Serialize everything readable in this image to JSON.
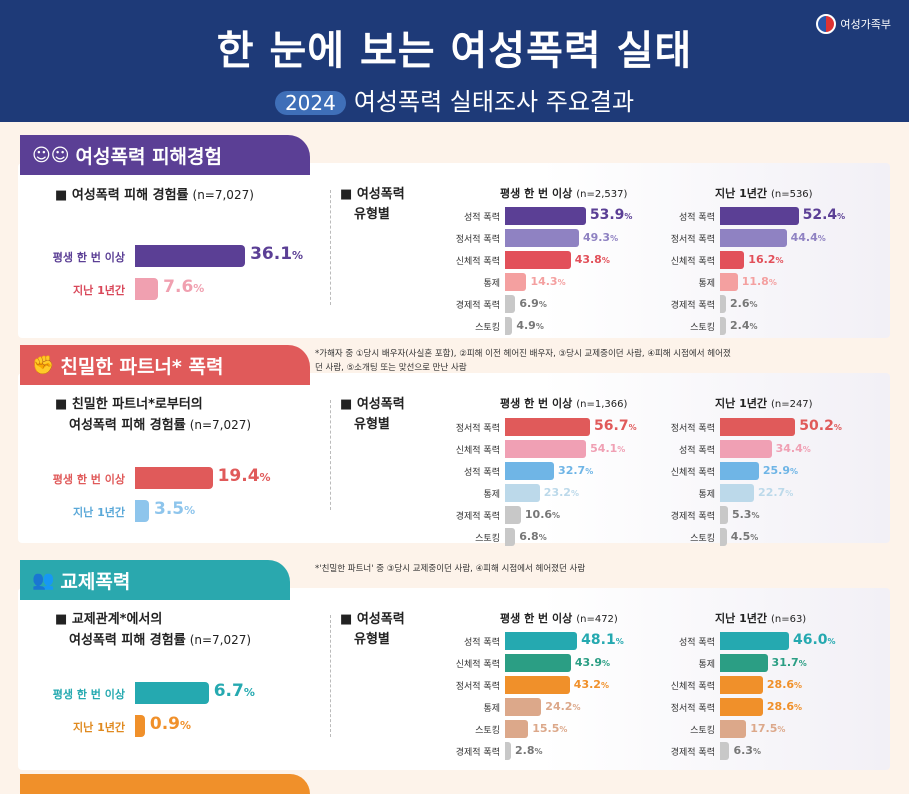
{
  "header": {
    "title": "한 눈에 보는 여성폭력 실태",
    "year": "2024",
    "subtitle": "여성폭력 실태조사 주요결과",
    "logo_text": "여성가족부"
  },
  "sections": [
    {
      "tab": "여성폭력 피해경험",
      "icon": "people-speech-icon",
      "color": "#5b3f95",
      "note": "",
      "left_title": "여성폭력 피해 경험률",
      "left_title2": "",
      "left_n": "(n=7,027)",
      "rate": [
        {
          "label": "평생 한 번 이상",
          "value": 36.1,
          "text": "36.1",
          "unit": "%",
          "color": "#5b3f95"
        },
        {
          "label": "지난 1년간",
          "value": 7.6,
          "text": "7.6",
          "unit": "%",
          "color": "#f0a0b0",
          "label_color": "#d9485a"
        }
      ],
      "type_title1": "여성폭력",
      "type_title2": "유형별",
      "charts": [
        {
          "title": "평생 한 번 이상",
          "n": "(n=2,537)",
          "categories": [
            "성적 폭력",
            "정서적 폭력",
            "신체적 폭력",
            "통제",
            "경제적 폭력",
            "스토킹"
          ],
          "values": [
            53.9,
            49.3,
            43.8,
            14.3,
            6.9,
            4.9
          ],
          "colors": [
            "#5b3f95",
            "#8f82c2",
            "#e2505a",
            "#f4a0a0",
            "#c8c8c8",
            "#c8c8c8"
          ]
        },
        {
          "title": "지난 1년간",
          "n": "(n=536)",
          "categories": [
            "성적 폭력",
            "정서적 폭력",
            "신체적 폭력",
            "통제",
            "경제적 폭력",
            "스토킹"
          ],
          "values": [
            52.4,
            44.4,
            16.2,
            11.8,
            2.6,
            2.4
          ],
          "colors": [
            "#5b3f95",
            "#8f82c2",
            "#e2505a",
            "#f4a0a0",
            "#c8c8c8",
            "#c8c8c8"
          ]
        }
      ]
    },
    {
      "tab": "친밀한 파트너* 폭력",
      "icon": "fist-icon",
      "color": "#e05a5a",
      "note": "*가해자 중 ①당시 배우자(사실혼 포함), ②피해 이전 헤어진 배우자, ③당시 교제중이던 사람, ④피해 시점에서 헤어졌던 사람, ⑤소개팅 또는 맞선으로 만난 사람",
      "left_title": "친밀한 파트너*로부터의",
      "left_title2": "여성폭력 피해 경험률",
      "left_n": "(n=7,027)",
      "rate": [
        {
          "label": "평생 한 번 이상",
          "value": 19.4,
          "text": "19.4",
          "unit": "%",
          "color": "#e05a5a"
        },
        {
          "label": "지난 1년간",
          "value": 3.5,
          "text": "3.5",
          "unit": "%",
          "color": "#8ec5ec",
          "label_color": "#5aa8d8"
        }
      ],
      "type_title1": "여성폭력",
      "type_title2": "유형별",
      "charts": [
        {
          "title": "평생 한 번 이상",
          "n": "(n=1,366)",
          "categories": [
            "정서적 폭력",
            "신체적 폭력",
            "성적 폭력",
            "통제",
            "경제적 폭력",
            "스토킹"
          ],
          "values": [
            56.7,
            54.1,
            32.7,
            23.2,
            10.6,
            6.8
          ],
          "colors": [
            "#e05a5a",
            "#f0a0b4",
            "#6fb5e6",
            "#bcd9ea",
            "#c8c8c8",
            "#c8c8c8"
          ]
        },
        {
          "title": "지난 1년간",
          "n": "(n=247)",
          "categories": [
            "정서적 폭력",
            "성적 폭력",
            "신체적 폭력",
            "통제",
            "경제적 폭력",
            "스토킹"
          ],
          "values": [
            50.2,
            34.4,
            25.9,
            22.7,
            5.3,
            4.5
          ],
          "colors": [
            "#e05a5a",
            "#f0a0b4",
            "#6fb5e6",
            "#bcd9ea",
            "#c8c8c8",
            "#c8c8c8"
          ]
        }
      ]
    },
    {
      "tab": "교제폭력",
      "icon": "couple-icon",
      "color": "#2aa8ae",
      "note": "*'친밀한 파트너' 중 ③당시 교제중이던 사람, ④피해 시점에서 헤어졌던 사람",
      "left_title": "교제관계*에서의",
      "left_title2": "여성폭력 피해 경험률",
      "left_n": "(n=7,027)",
      "rate": [
        {
          "label": "평생 한 번 이상",
          "value": 6.7,
          "text": "6.7",
          "unit": "%",
          "color": "#25a9b0"
        },
        {
          "label": "지난 1년간",
          "value": 0.9,
          "text": "0.9",
          "unit": "%",
          "color": "#f0902a",
          "label_color": "#e08a20"
        }
      ],
      "type_title1": "여성폭력",
      "type_title2": "유형별",
      "charts": [
        {
          "title": "평생 한 번 이상",
          "n": "(n=472)",
          "categories": [
            "성적 폭력",
            "신체적 폭력",
            "정서적 폭력",
            "통제",
            "스토킹",
            "경제적 폭력"
          ],
          "values": [
            48.1,
            43.9,
            43.2,
            24.2,
            15.5,
            2.8
          ],
          "colors": [
            "#25a9b0",
            "#2b9e84",
            "#f0902a",
            "#dca88a",
            "#dca88a",
            "#c8c8c8"
          ]
        },
        {
          "title": "지난 1년간",
          "n": "(n=63)",
          "categories": [
            "성적 폭력",
            "통제",
            "신체적 폭력",
            "정서적 폭력",
            "스토킹",
            "경제적 폭력"
          ],
          "values": [
            46.0,
            31.7,
            28.6,
            28.6,
            17.5,
            6.3
          ],
          "colors": [
            "#25a9b0",
            "#2b9e84",
            "#f0902a",
            "#f0902a",
            "#dca88a",
            "#c8c8c8"
          ]
        }
      ]
    }
  ],
  "chart_data": [
    {
      "type": "bar",
      "title": "여성폭력 피해 경험률 (n=7,027)",
      "categories": [
        "평생 한 번 이상",
        "지난 1년간"
      ],
      "values": [
        36.1,
        7.6
      ],
      "unit": "%"
    },
    {
      "type": "bar",
      "title": "평생 한 번 이상 (n=2,537)",
      "categories": [
        "성적 폭력",
        "정서적 폭력",
        "신체적 폭력",
        "통제",
        "경제적 폭력",
        "스토킹"
      ],
      "values": [
        53.9,
        49.3,
        43.8,
        14.3,
        6.9,
        4.9
      ],
      "unit": "%"
    },
    {
      "type": "bar",
      "title": "지난 1년간 (n=536)",
      "categories": [
        "성적 폭력",
        "정서적 폭력",
        "신체적 폭력",
        "통제",
        "경제적 폭력",
        "스토킹"
      ],
      "values": [
        52.4,
        44.4,
        16.2,
        11.8,
        2.6,
        2.4
      ],
      "unit": "%"
    },
    {
      "type": "bar",
      "title": "친밀한 파트너*로부터의 여성폭력 피해 경험률 (n=7,027)",
      "categories": [
        "평생 한 번 이상",
        "지난 1년간"
      ],
      "values": [
        19.4,
        3.5
      ],
      "unit": "%"
    },
    {
      "type": "bar",
      "title": "평생 한 번 이상 (n=1,366)",
      "categories": [
        "정서적 폭력",
        "신체적 폭력",
        "성적 폭력",
        "통제",
        "경제적 폭력",
        "스토킹"
      ],
      "values": [
        56.7,
        54.1,
        32.7,
        23.2,
        10.6,
        6.8
      ],
      "unit": "%"
    },
    {
      "type": "bar",
      "title": "지난 1년간 (n=247)",
      "categories": [
        "정서적 폭력",
        "성적 폭력",
        "신체적 폭력",
        "통제",
        "경제적 폭력",
        "스토킹"
      ],
      "values": [
        50.2,
        34.4,
        25.9,
        22.7,
        5.3,
        4.5
      ],
      "unit": "%"
    },
    {
      "type": "bar",
      "title": "교제관계*에서의 여성폭력 피해 경험률 (n=7,027)",
      "categories": [
        "평생 한 번 이상",
        "지난 1년간"
      ],
      "values": [
        6.7,
        0.9
      ],
      "unit": "%"
    },
    {
      "type": "bar",
      "title": "평생 한 번 이상 (n=472)",
      "categories": [
        "성적 폭력",
        "신체적 폭력",
        "정서적 폭력",
        "통제",
        "스토킹",
        "경제적 폭력"
      ],
      "values": [
        48.1,
        43.9,
        43.2,
        24.2,
        15.5,
        2.8
      ],
      "unit": "%"
    },
    {
      "type": "bar",
      "title": "지난 1년간 (n=63)",
      "categories": [
        "성적 폭력",
        "통제",
        "신체적 폭력",
        "정서적 폭력",
        "스토킹",
        "경제적 폭력"
      ],
      "values": [
        46.0,
        31.7,
        28.6,
        28.6,
        17.5,
        6.3
      ],
      "unit": "%"
    }
  ]
}
